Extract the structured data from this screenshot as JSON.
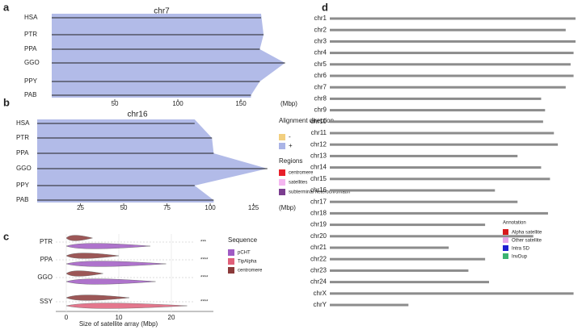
{
  "chart_data": [
    {
      "type": "synteny",
      "panel": "a",
      "title": "chr7",
      "categories": [
        "HSA",
        "PTR",
        "PPA",
        "GGO",
        "PPY",
        "PAB"
      ],
      "values": [
        166,
        168,
        165,
        185,
        165,
        158
      ],
      "xlim": [
        0,
        175
      ],
      "xticks": [
        50,
        100,
        150
      ],
      "xlabel": "(Mbp)",
      "color": "#aab4e6"
    },
    {
      "type": "synteny",
      "panel": "b",
      "title": "chr16",
      "categories": [
        "HSA",
        "PTR",
        "PPA",
        "GGO",
        "PPY",
        "PAB"
      ],
      "values": [
        91,
        101,
        102,
        133,
        91,
        102
      ],
      "xlim": [
        0,
        135
      ],
      "xticks": [
        25,
        50,
        75,
        100,
        125
      ],
      "xlabel": "(Mbp)",
      "color": "#aab4e6",
      "legend": {
        "direction_title": "Alignment direction",
        "direction": [
          {
            "name": "-",
            "color": "#f2cf7f"
          },
          {
            "name": "+",
            "color": "#aab4e6"
          }
        ],
        "regions_title": "Regions",
        "regions": [
          {
            "name": "centromere",
            "color": "#e8202a"
          },
          {
            "name": "satellites",
            "color": "#f4b6f0"
          },
          {
            "name": "subterminal heterochromatin",
            "color": "#7b3d8f"
          }
        ]
      }
    },
    {
      "type": "violin",
      "panel": "c",
      "categories": [
        "PTR",
        "PPA",
        "GGO",
        "SSY"
      ],
      "legend_title": "Sequence",
      "series": [
        {
          "name": "pCHT",
          "color": "#a05bc4",
          "values": [
            16,
            19,
            17,
            null
          ]
        },
        {
          "name": "TipAlpha",
          "color": "#e0607a",
          "values": [
            null,
            null,
            null,
            23
          ]
        },
        {
          "name": "centromere",
          "color": "#8b3a3a",
          "values": [
            5,
            10,
            7,
            12
          ]
        }
      ],
      "annotations": [
        "***",
        "****",
        "****",
        "****"
      ],
      "xlim": [
        -2,
        28
      ],
      "xticks": [
        0,
        10,
        20
      ],
      "xlabel": "Size of satellite array (Mbp)"
    },
    {
      "type": "karyogram",
      "panel": "d",
      "categories": [
        "chr1",
        "chr2",
        "chr3",
        "chr4",
        "chr5",
        "chr6",
        "chr7",
        "chr8",
        "chr9",
        "chr10",
        "chr11",
        "chr12",
        "chr13",
        "chr14",
        "chr15",
        "chr16",
        "chr17",
        "chr18",
        "chr19",
        "chr20",
        "chr21",
        "chr22",
        "chr23",
        "chr24",
        "chrX",
        "chrY"
      ],
      "values": [
        250,
        240,
        250,
        248,
        245,
        248,
        240,
        215,
        219,
        217,
        228,
        232,
        191,
        215,
        224,
        168,
        191,
        222,
        158,
        207,
        121,
        158,
        141,
        162,
        248,
        80
      ],
      "xlim": [
        0,
        250
      ],
      "color": "#8c8c8c",
      "legend_title": "Annotation",
      "legend": [
        {
          "name": "Alpha satellite",
          "color": "#d7191c"
        },
        {
          "name": "Other satellite",
          "color": "#e7a6e8"
        },
        {
          "name": "Intra SD",
          "color": "#1f1fd0"
        },
        {
          "name": "InvDup",
          "color": "#3cb371"
        }
      ]
    }
  ]
}
